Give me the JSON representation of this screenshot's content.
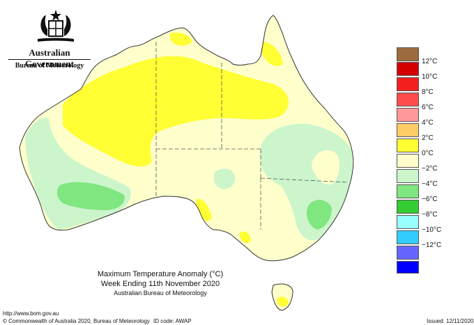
{
  "header": {
    "government": "Australian Government",
    "bureau": "Bureau of Meteorology"
  },
  "map": {
    "title": "Maximum Temperature Anomaly (°C)",
    "subtitle": "Week Ending 11th November 2020",
    "credit": "Australian Bureau of Meteorology",
    "region": "Australia"
  },
  "legend": {
    "items": [
      {
        "label": "",
        "color": "#9c6b3d"
      },
      {
        "label": "12°C",
        "color": "#d40000"
      },
      {
        "label": "10°C",
        "color": "#f31f1f"
      },
      {
        "label": "8°C",
        "color": "#ff4d4d"
      },
      {
        "label": "6°C",
        "color": "#ff9999"
      },
      {
        "label": "4°C",
        "color": "#ffcc66"
      },
      {
        "label": "2°C",
        "color": "#ffff33"
      },
      {
        "label": "0°C",
        "color": "#ffffcc"
      },
      {
        "label": "−2°C",
        "color": "#ccf5cc"
      },
      {
        "label": "−4°C",
        "color": "#80e680"
      },
      {
        "label": "−6°C",
        "color": "#33cc33"
      },
      {
        "label": "−8°C",
        "color": "#99ffff"
      },
      {
        "label": "−10°C",
        "color": "#33ccff"
      },
      {
        "label": "−12°C",
        "color": "#6666ff"
      },
      {
        "label": "",
        "color": "#0000ff"
      }
    ]
  },
  "footer": {
    "url": "http://www.bom.gov.au",
    "copyright": "© Commonwealth of Australia 2020, Bureau of Meteorology",
    "id_code": "ID code: AWAP",
    "issued": "Issued: 12/11/2020"
  }
}
